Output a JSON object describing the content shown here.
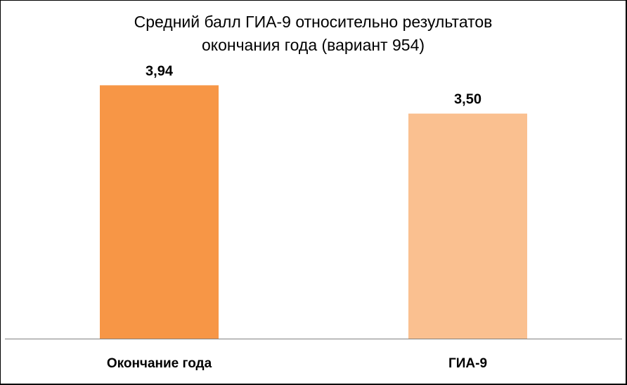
{
  "chart_data": {
    "type": "bar",
    "title_lines": [
      "Средний балл ГИА-9 относительно результатов",
      "окончания года (вариант 954)"
    ],
    "categories": [
      "Окончание года",
      "ГИА-9"
    ],
    "values": [
      3.94,
      3.5
    ],
    "value_labels": [
      "3,94",
      "3,50"
    ],
    "colors": [
      "#f79646",
      "#fac090"
    ],
    "ylim": [
      0,
      4.6
    ],
    "grid": false,
    "legend": "none",
    "xlabel": "",
    "ylabel": ""
  }
}
